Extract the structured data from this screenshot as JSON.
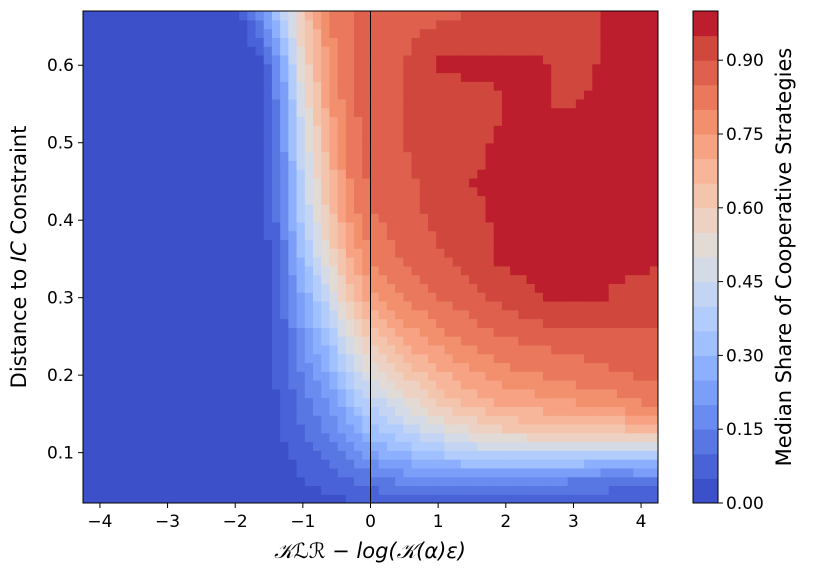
{
  "chart_data": {
    "type": "heatmap",
    "subtype": "filled-contour",
    "colormap": "coolwarm",
    "xlabel": "𝒦ℒℛ − log(𝒦(α)ε)",
    "ylabel_prefix": "Distance to ",
    "ylabel_italic": "IC",
    "ylabel_suffix": " Constraint",
    "xlim": [
      -4.25,
      4.25
    ],
    "ylim": [
      0.035,
      0.67
    ],
    "x_ticks": [
      -4,
      -3,
      -2,
      -1,
      0,
      1,
      2,
      3,
      4
    ],
    "x_tick_labels": [
      "−4",
      "−3",
      "−2",
      "−1",
      "0",
      "1",
      "2",
      "3",
      "4"
    ],
    "y_ticks": [
      0.1,
      0.2,
      0.3,
      0.4,
      0.5,
      0.6
    ],
    "y_tick_labels": [
      "0.1",
      "0.2",
      "0.3",
      "0.4",
      "0.5",
      "0.6"
    ],
    "vertical_reference_line_x": 0,
    "colorbar": {
      "label": "Median Share of Cooperative Strategies",
      "range": [
        0,
        1
      ],
      "levels": 20,
      "ticks": [
        0.0,
        0.15,
        0.3,
        0.45,
        0.6,
        0.75,
        0.9
      ],
      "tick_labels": [
        "0.00",
        "0.15",
        "0.30",
        "0.45",
        "0.60",
        "0.75",
        "0.90"
      ]
    },
    "contour_field": {
      "description": "Approximate median share (0-1) read from colors; rows by y, columns by x",
      "x": [
        -4.2,
        -3,
        -2,
        -1.6,
        -1.3,
        -1.0,
        -0.6,
        -0.3,
        0,
        0.5,
        1,
        1.5,
        2,
        2.5,
        3,
        3.5,
        4.2
      ],
      "y": [
        0.04,
        0.07,
        0.1,
        0.13,
        0.16,
        0.2,
        0.25,
        0.3,
        0.35,
        0.4,
        0.45,
        0.5,
        0.55,
        0.6,
        0.67
      ],
      "z": [
        [
          0,
          0,
          0,
          0.01,
          0.02,
          0.03,
          0.04,
          0.05,
          0.06,
          0.07,
          0.08,
          0.08,
          0.08,
          0.08,
          0.07,
          0.06,
          0.05
        ],
        [
          0,
          0,
          0,
          0.01,
          0.02,
          0.05,
          0.08,
          0.11,
          0.14,
          0.18,
          0.2,
          0.2,
          0.19,
          0.18,
          0.17,
          0.16,
          0.16
        ],
        [
          0,
          0,
          0,
          0.01,
          0.04,
          0.08,
          0.12,
          0.18,
          0.24,
          0.3,
          0.36,
          0.4,
          0.42,
          0.42,
          0.42,
          0.41,
          0.42
        ],
        [
          0,
          0,
          0,
          0.02,
          0.05,
          0.1,
          0.16,
          0.23,
          0.32,
          0.4,
          0.48,
          0.55,
          0.6,
          0.62,
          0.63,
          0.64,
          0.65
        ],
        [
          0,
          0,
          0,
          0.02,
          0.06,
          0.12,
          0.2,
          0.3,
          0.4,
          0.5,
          0.6,
          0.66,
          0.7,
          0.72,
          0.74,
          0.76,
          0.8
        ],
        [
          0,
          0,
          0,
          0.02,
          0.07,
          0.15,
          0.26,
          0.38,
          0.5,
          0.6,
          0.68,
          0.74,
          0.78,
          0.8,
          0.82,
          0.84,
          0.86
        ],
        [
          0,
          0,
          0,
          0.02,
          0.08,
          0.2,
          0.35,
          0.5,
          0.62,
          0.72,
          0.78,
          0.82,
          0.85,
          0.87,
          0.88,
          0.89,
          0.89
        ],
        [
          0,
          0,
          0,
          0.02,
          0.1,
          0.25,
          0.45,
          0.62,
          0.73,
          0.8,
          0.85,
          0.88,
          0.92,
          0.95,
          0.96,
          0.95,
          0.92
        ],
        [
          0,
          0,
          0,
          0.02,
          0.12,
          0.32,
          0.55,
          0.7,
          0.8,
          0.86,
          0.89,
          0.93,
          0.96,
          0.96,
          0.96,
          0.96,
          0.96
        ],
        [
          0,
          0,
          0,
          0.02,
          0.14,
          0.38,
          0.62,
          0.76,
          0.84,
          0.88,
          0.91,
          0.94,
          0.96,
          0.96,
          0.96,
          0.96,
          0.96
        ],
        [
          0,
          0,
          0,
          0.02,
          0.16,
          0.42,
          0.66,
          0.8,
          0.86,
          0.89,
          0.92,
          0.95,
          0.96,
          0.96,
          0.96,
          0.96,
          0.96
        ],
        [
          0,
          0,
          0,
          0.02,
          0.18,
          0.45,
          0.7,
          0.82,
          0.87,
          0.9,
          0.92,
          0.94,
          0.96,
          0.96,
          0.96,
          0.96,
          0.96
        ],
        [
          0,
          0,
          0,
          0.03,
          0.2,
          0.5,
          0.74,
          0.84,
          0.88,
          0.9,
          0.92,
          0.93,
          0.95,
          0.95,
          0.95,
          0.96,
          0.96
        ],
        [
          0,
          0,
          0,
          0.04,
          0.24,
          0.55,
          0.78,
          0.85,
          0.88,
          0.9,
          0.96,
          0.96,
          0.96,
          0.96,
          0.93,
          0.96,
          0.96
        ],
        [
          0,
          0,
          0.01,
          0.18,
          0.4,
          0.62,
          0.8,
          0.85,
          0.88,
          0.88,
          0.88,
          0.9,
          0.9,
          0.9,
          0.9,
          0.96,
          0.96
        ]
      ]
    }
  },
  "palette": {
    "colorbar_levels": [
      "#3c50c9",
      "#4a62d8",
      "#5977e3",
      "#6a8bef",
      "#7b9ff9",
      "#8db0fe",
      "#a1c0ff",
      "#b2ccfb",
      "#c4d5f3",
      "#d4dbe6",
      "#e2dad5",
      "#edd1c2",
      "#f4c5ad",
      "#f7b599",
      "#f6a283",
      "#f2906e",
      "#e9785d",
      "#de604d",
      "#d0473d",
      "#bc1e2d"
    ]
  }
}
